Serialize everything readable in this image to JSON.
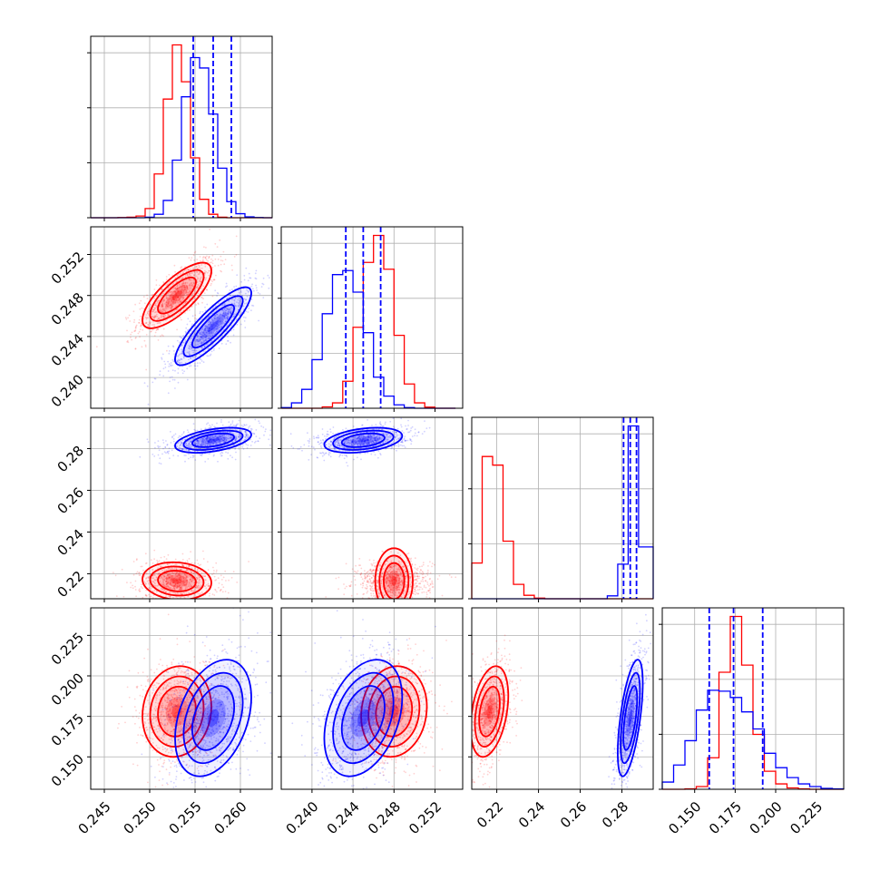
{
  "chart_data": {
    "type": "corner",
    "grid": true,
    "colors": {
      "red": "#ff0000",
      "blue": "#0000ff"
    },
    "variables": [
      {
        "ticks": [
          0.245,
          0.25,
          0.255,
          0.26
        ],
        "tick_labels": [
          "0.245",
          "0.250",
          "0.255",
          "0.260"
        ],
        "range": [
          0.2435,
          0.2635
        ]
      },
      {
        "ticks": [
          0.24,
          0.244,
          0.248,
          0.252
        ],
        "tick_labels": [
          "0.240",
          "0.244",
          "0.248",
          "0.252"
        ],
        "range": [
          0.237,
          0.2547
        ]
      },
      {
        "ticks": [
          0.22,
          0.24,
          0.26,
          0.28
        ],
        "tick_labels": [
          "0.22",
          "0.24",
          "0.26",
          "0.28"
        ],
        "range": [
          0.208,
          0.295
        ]
      },
      {
        "ticks": [
          0.15,
          0.175,
          0.2,
          0.225
        ],
        "tick_labels": [
          "0.150",
          "0.175",
          "0.200",
          "0.225"
        ],
        "range": [
          0.13,
          0.242
        ]
      }
    ],
    "series": [
      {
        "color": "red",
        "mean": [
          0.253,
          0.248,
          0.2165,
          0.178
        ],
        "sd": [
          0.0019,
          0.0016,
          0.0045,
          0.014
        ]
      },
      {
        "color": "blue",
        "mean": [
          0.257,
          0.245,
          0.284,
          0.174
        ],
        "sd": [
          0.0021,
          0.0019,
          0.003,
          0.018
        ],
        "quantiles": [
          [
            0.2548,
            0.257,
            0.259
          ],
          [
            0.2433,
            0.245,
            0.2467
          ],
          [
            0.2808,
            0.284,
            0.287
          ],
          [
            0.159,
            0.174,
            0.192
          ]
        ]
      }
    ],
    "histograms": [
      {
        "bin_edges": [
          0.2435,
          0.2445,
          0.2455,
          0.2465,
          0.2475,
          0.2485,
          0.2495,
          0.2505,
          0.2515,
          0.2525,
          0.2535,
          0.2545,
          0.2555,
          0.2565,
          0.2575,
          0.2585,
          0.2595,
          0.2605,
          0.2615,
          0.2625,
          0.2635
        ],
        "red": [
          0,
          0,
          0,
          2,
          5,
          15,
          80,
          380,
          1030,
          1500,
          1180,
          520,
          160,
          30,
          5,
          0,
          0,
          0,
          0,
          0
        ],
        "blue": [
          0,
          0,
          0,
          0,
          0,
          0,
          5,
          30,
          150,
          500,
          1050,
          1390,
          1300,
          900,
          430,
          140,
          35,
          8,
          2,
          0
        ]
      },
      {
        "bin_edges": [
          0.237,
          0.238,
          0.239,
          0.24,
          0.241,
          0.242,
          0.243,
          0.244,
          0.245,
          0.246,
          0.247,
          0.248,
          0.249,
          0.25,
          0.251,
          0.252,
          0.253,
          0.254
        ],
        "red": [
          0,
          0,
          0,
          0,
          10,
          40,
          200,
          600,
          1080,
          1280,
          1030,
          540,
          180,
          40,
          8,
          0,
          0
        ],
        "blue": [
          5,
          40,
          140,
          360,
          700,
          990,
          1020,
          860,
          560,
          230,
          90,
          25,
          5,
          0,
          0,
          0,
          0
        ]
      },
      {
        "bin_edges": [
          0.208,
          0.213,
          0.218,
          0.223,
          0.228,
          0.233,
          0.238,
          0.243,
          0.248,
          0.253,
          0.258,
          0.263,
          0.268,
          0.273,
          0.278,
          0.283,
          0.288,
          0.295
        ],
        "red": [
          620,
          2470,
          2320,
          1000,
          250,
          60,
          12,
          0,
          0,
          0,
          0,
          0,
          0,
          0,
          0,
          0,
          0
        ],
        "blue": [
          0,
          0,
          0,
          0,
          0,
          0,
          0,
          0,
          0,
          0,
          0,
          0,
          0,
          50,
          600,
          3000,
          900
        ]
      },
      {
        "bin_edges": [
          0.13,
          0.137,
          0.144,
          0.151,
          0.158,
          0.165,
          0.172,
          0.179,
          0.186,
          0.193,
          0.2,
          0.207,
          0.214,
          0.221,
          0.228,
          0.235,
          0.242
        ],
        "red": [
          0,
          0,
          5,
          30,
          350,
          1300,
          1920,
          1380,
          610,
          200,
          60,
          15,
          5,
          0,
          0,
          0
        ],
        "blue": [
          80,
          270,
          540,
          880,
          1100,
          1090,
          1020,
          860,
          670,
          400,
          240,
          130,
          60,
          30,
          10,
          5
        ]
      }
    ]
  }
}
